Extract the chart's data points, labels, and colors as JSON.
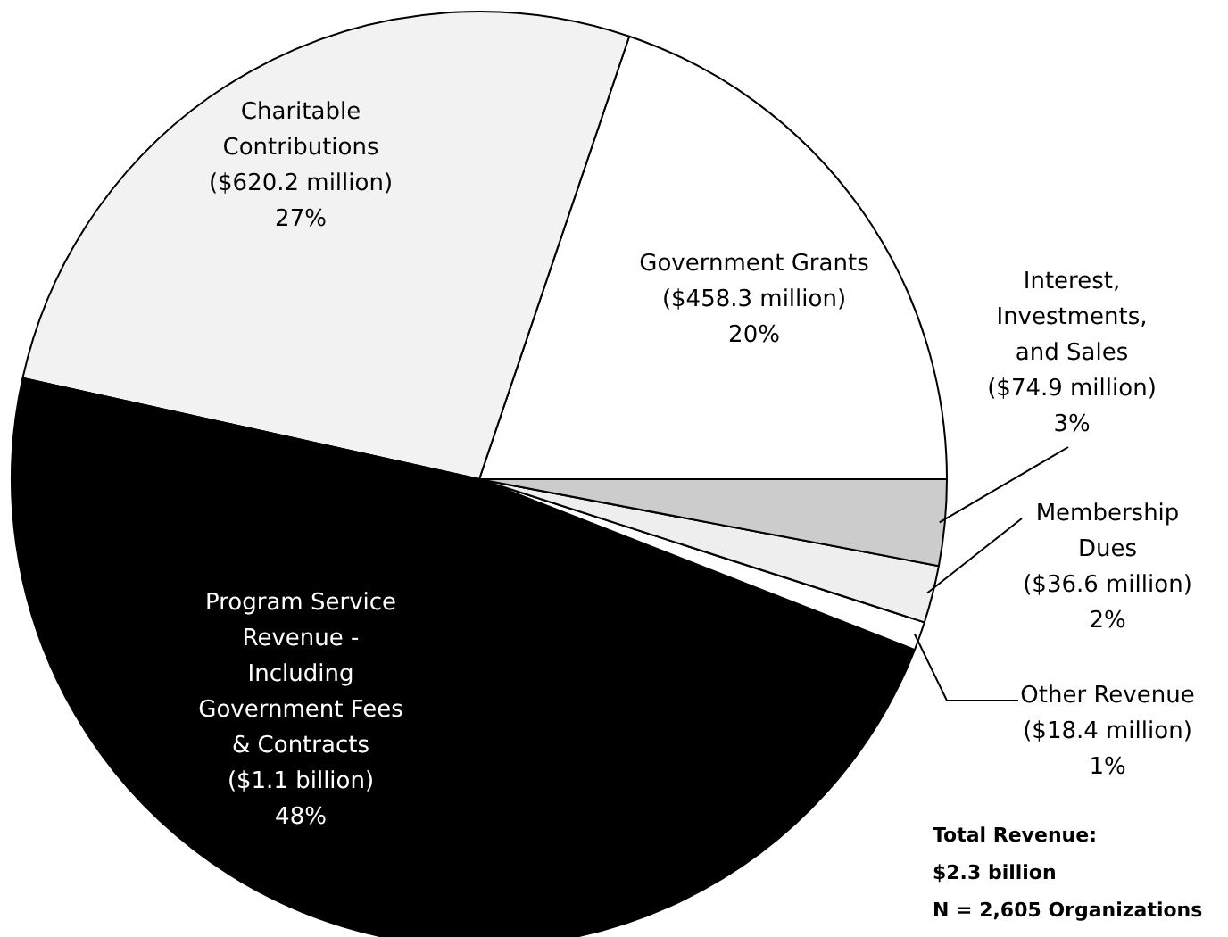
{
  "chart_data": {
    "type": "pie",
    "categories": [
      "Government Grants ($458.3 million)",
      "Charitable Contributions ($620.2 million)",
      "Program Service Revenue - Including Government Fees & Contracts ($1.1 billion)",
      "Other Revenue ($18.4 million)",
      "Membership Dues ($36.6 million)",
      "Interest, Investments, and Sales ($74.9 million)"
    ],
    "values": [
      20,
      27,
      48,
      1,
      2,
      3
    ],
    "colors": [
      "#ffffff",
      "#f2f2f2",
      "#000000",
      "#ffffff",
      "#eeeeee",
      "#cccccc"
    ],
    "value_labels": [
      "20%",
      "27%",
      "48%",
      "1%",
      "2%",
      "3%"
    ],
    "annotations": [
      "Total Revenue:\n$2.3 billion\nN = 2,605 Organizations"
    ]
  }
}
